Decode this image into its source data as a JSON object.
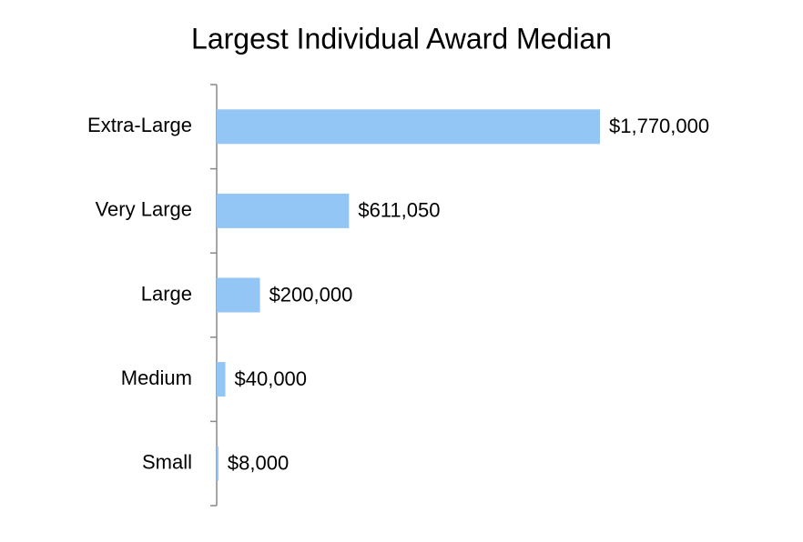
{
  "chart_data": {
    "type": "bar",
    "orientation": "horizontal",
    "title": "Largest Individual Award Median",
    "categories": [
      "Extra-Large",
      "Very Large",
      "Large",
      "Medium",
      "Small"
    ],
    "values": [
      1770000,
      611050,
      200000,
      40000,
      8000
    ],
    "value_labels": [
      "$1,770,000",
      "$611,050",
      "$200,000",
      "$40,000",
      "$8,000"
    ],
    "color": "#93c5f5"
  }
}
